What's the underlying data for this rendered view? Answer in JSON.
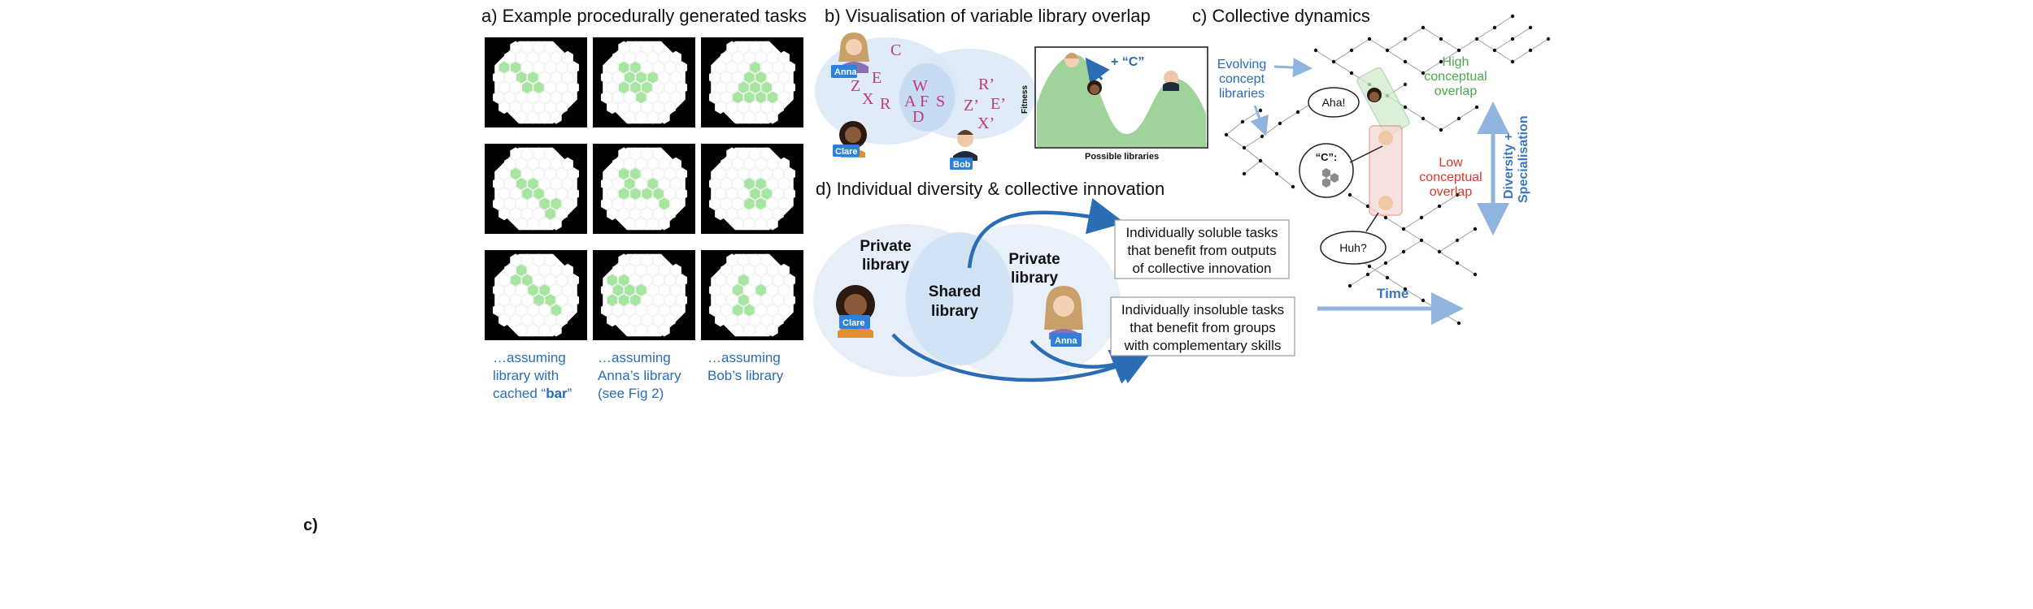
{
  "panel_a": {
    "title": "a) Example procedurally generated tasks",
    "captions": [
      {
        "pre": "…assuming",
        "line2": "library with",
        "line3_pre": "cached “",
        "bold": "bar",
        "line3_post": "”"
      },
      {
        "line1": "…assuming",
        "line2": "Anna’s library",
        "line3": "(see Fig 2)"
      },
      {
        "line1": "…assuming",
        "line2": "Bob’s library"
      }
    ]
  },
  "panel_b": {
    "title": "b) Visualisation of variable library overlap",
    "names": {
      "anna": "Anna",
      "clare": "Clare",
      "bob": "Bob"
    },
    "letters_left": [
      "C",
      "Z",
      "E",
      "X",
      "R"
    ],
    "letters_shared": [
      "W",
      "A",
      "F",
      "S",
      "D"
    ],
    "letters_right": [
      "R’",
      "Z’",
      "E’",
      "X’"
    ],
    "plus_c": "+ “C”",
    "fitness_label": "Fitness",
    "libraries_label": "Possible libraries"
  },
  "panel_c": {
    "title": "c) Collective dynamics",
    "evolving": [
      "Evolving",
      "concept",
      "libraries"
    ],
    "high": [
      "High",
      "conceptual",
      "overlap"
    ],
    "low": [
      "Low",
      "conceptual",
      "overlap"
    ],
    "aha": "Aha!",
    "huh": "Huh?",
    "concept_label": "“C”:",
    "time": "Time",
    "diversity": [
      "Diversity +",
      "Specialisation"
    ]
  },
  "panel_d": {
    "title": "d) Individual diversity & collective innovation",
    "private_left": [
      "Private",
      "library"
    ],
    "shared": [
      "Shared",
      "library"
    ],
    "private_right": [
      "Private",
      "library"
    ],
    "box1": [
      "Individually soluble tasks",
      "that benefit from outputs",
      "of collective innovation"
    ],
    "box2": [
      "Individually insoluble tasks",
      "that benefit from groups",
      "with complementary skills"
    ],
    "names": {
      "clare": "Clare",
      "anna": "Anna"
    }
  },
  "bottom_label": "c)",
  "colors": {
    "green": "#a6e6a0",
    "blue": "#2a6db5",
    "magenta": "#c0397a",
    "red": "#d9372b",
    "lightblue": "#dbe8f7"
  }
}
